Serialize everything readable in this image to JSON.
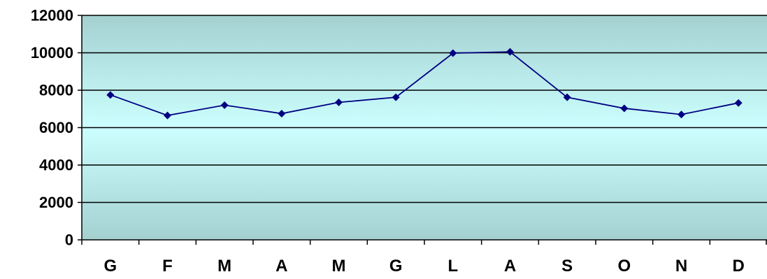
{
  "chart_data": {
    "type": "line",
    "categories": [
      "G",
      "F",
      "M",
      "A",
      "M",
      "G",
      "L",
      "A",
      "S",
      "O",
      "N",
      "D"
    ],
    "series": [
      {
        "values": [
          7750,
          6650,
          7200,
          6750,
          7350,
          7620,
          9980,
          10050,
          7620,
          7030,
          6700,
          7320
        ],
        "color": "#000080"
      }
    ],
    "ylim": [
      0,
      12000
    ],
    "yticks": [
      0,
      2000,
      4000,
      6000,
      8000,
      10000,
      12000
    ],
    "grid": true,
    "plot_background": {
      "edge": "#a4d0d0",
      "center": "#ccffff"
    },
    "marker": "diamond",
    "legend": "none"
  }
}
